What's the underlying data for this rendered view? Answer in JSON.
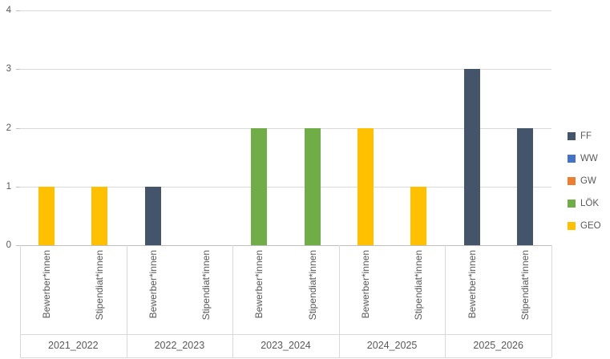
{
  "chart_data": {
    "type": "bar",
    "title": "",
    "xlabel": "",
    "ylabel": "",
    "categories": [
      "2021_2022",
      "2022_2023",
      "2023_2024",
      "2024_2025",
      "2025_2026"
    ],
    "subcategories": [
      "Bewerber*innen",
      "Stipendiat*innen"
    ],
    "series_legend": [
      {
        "name": "FF",
        "color": "#44546A"
      },
      {
        "name": "WW",
        "color": "#4472C4"
      },
      {
        "name": "GW",
        "color": "#ED7D31"
      },
      {
        "name": "LÖK",
        "color": "#70AD47"
      },
      {
        "name": "GEO",
        "color": "#FFC000"
      }
    ],
    "bars": [
      {
        "category": "2021_2022",
        "subcategory": "Bewerber*innen",
        "series": "GEO",
        "value": 1
      },
      {
        "category": "2021_2022",
        "subcategory": "Stipendiat*innen",
        "series": "GEO",
        "value": 1
      },
      {
        "category": "2022_2023",
        "subcategory": "Bewerber*innen",
        "series": "FF",
        "value": 1
      },
      {
        "category": "2022_2023",
        "subcategory": "Stipendiat*innen",
        "series": null,
        "value": 0
      },
      {
        "category": "2023_2024",
        "subcategory": "Bewerber*innen",
        "series": "LÖK",
        "value": 2
      },
      {
        "category": "2023_2024",
        "subcategory": "Stipendiat*innen",
        "series": "LÖK",
        "value": 2
      },
      {
        "category": "2024_2025",
        "subcategory": "Bewerber*innen",
        "series": "GEO",
        "value": 2
      },
      {
        "category": "2024_2025",
        "subcategory": "Stipendiat*innen",
        "series": "GEO",
        "value": 1
      },
      {
        "category": "2025_2026",
        "subcategory": "Bewerber*innen",
        "series": "FF",
        "value": 3
      },
      {
        "category": "2025_2026",
        "subcategory": "Stipendiat*innen",
        "series": "FF",
        "value": 2
      }
    ],
    "y_axis": {
      "min": 0,
      "max": 4,
      "tick_interval": 1,
      "tick_labels": [
        "0",
        "1",
        "2",
        "3",
        "4"
      ]
    },
    "grid": true,
    "legend_position": "right",
    "colors": {
      "gridline": "#D9D9D9",
      "axis_line": "#BFBFBF",
      "divider_line": "#D9D9D9",
      "text": "#595959",
      "background": "#FFFFFF"
    }
  }
}
